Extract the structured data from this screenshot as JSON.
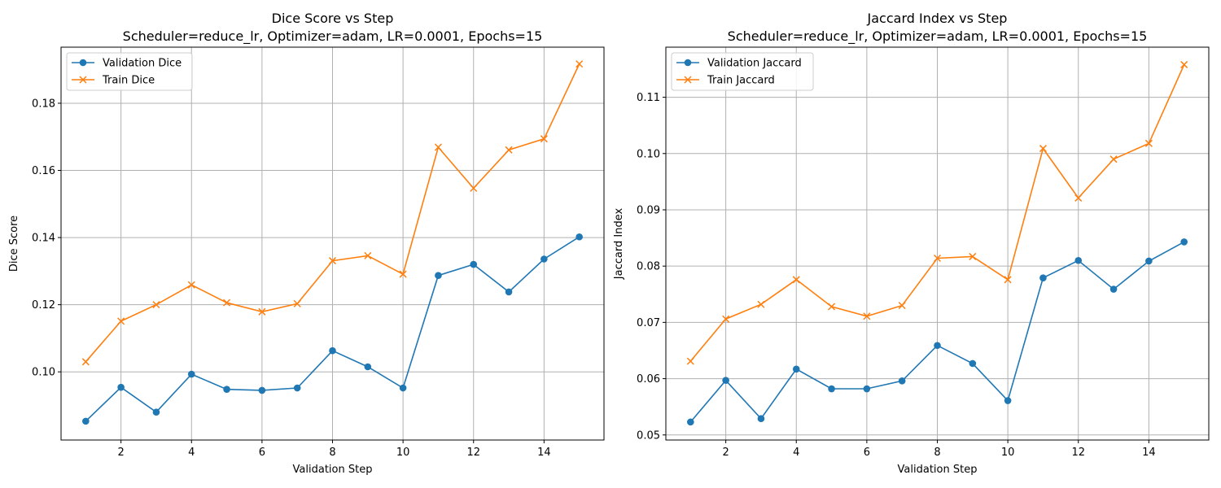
{
  "chart_data": [
    {
      "type": "line",
      "title": "Dice Score vs Step",
      "subtitle": "Scheduler=reduce_lr, Optimizer=adam, LR=0.0001, Epochs=15",
      "xlabel": "Validation Step",
      "ylabel": "Dice Score",
      "x": [
        1,
        2,
        3,
        4,
        5,
        6,
        7,
        8,
        9,
        10,
        11,
        12,
        13,
        14,
        15
      ],
      "xlim": [
        0.3,
        15.7
      ],
      "ylim": [
        0.0797,
        0.1967
      ],
      "xticks": [
        2,
        4,
        6,
        8,
        10,
        12,
        14
      ],
      "xtick_labels": [
        "2",
        "4",
        "6",
        "8",
        "10",
        "12",
        "14"
      ],
      "yticks": [
        0.1,
        0.12,
        0.14,
        0.16,
        0.18
      ],
      "ytick_labels": [
        "0.10",
        "0.12",
        "0.14",
        "0.16",
        "0.18"
      ],
      "grid": true,
      "legend_position": "top-left",
      "series": [
        {
          "name": "Validation Dice",
          "color": "#1f77b4",
          "marker": "circle",
          "values": [
            0.0853,
            0.0954,
            0.088,
            0.0993,
            0.0948,
            0.0945,
            0.0952,
            0.1063,
            0.1015,
            0.0952,
            0.1287,
            0.132,
            0.1238,
            0.1336,
            0.1402
          ]
        },
        {
          "name": "Train Dice",
          "color": "#ff7f0e",
          "marker": "x",
          "values": [
            0.103,
            0.1151,
            0.12,
            0.1259,
            0.1206,
            0.1179,
            0.1203,
            0.1331,
            0.1346,
            0.1291,
            0.1669,
            0.1547,
            0.1661,
            0.1694,
            0.1917
          ]
        }
      ]
    },
    {
      "type": "line",
      "title": "Jaccard Index vs Step",
      "subtitle": "Scheduler=reduce_lr, Optimizer=adam, LR=0.0001, Epochs=15",
      "xlabel": "Validation Step",
      "ylabel": "Jaccard Index",
      "x": [
        1,
        2,
        3,
        4,
        5,
        6,
        7,
        8,
        9,
        10,
        11,
        12,
        13,
        14,
        15
      ],
      "xlim": [
        0.3,
        15.7
      ],
      "ylim": [
        0.0491,
        0.1189
      ],
      "xticks": [
        2,
        4,
        6,
        8,
        10,
        12,
        14
      ],
      "xtick_labels": [
        "2",
        "4",
        "6",
        "8",
        "10",
        "12",
        "14"
      ],
      "yticks": [
        0.05,
        0.06,
        0.07,
        0.08,
        0.09,
        0.1,
        0.11
      ],
      "ytick_labels": [
        "0.05",
        "0.06",
        "0.07",
        "0.08",
        "0.09",
        "0.10",
        "0.11"
      ],
      "grid": true,
      "legend_position": "top-left",
      "series": [
        {
          "name": "Validation Jaccard",
          "color": "#1f77b4",
          "marker": "circle",
          "values": [
            0.0523,
            0.0597,
            0.0529,
            0.0617,
            0.0582,
            0.0582,
            0.0596,
            0.0659,
            0.0627,
            0.0561,
            0.0779,
            0.081,
            0.0759,
            0.0809,
            0.0843
          ]
        },
        {
          "name": "Train Jaccard",
          "color": "#ff7f0e",
          "marker": "x",
          "values": [
            0.0631,
            0.0706,
            0.0732,
            0.0776,
            0.0728,
            0.0711,
            0.073,
            0.0814,
            0.0817,
            0.0776,
            0.1009,
            0.0921,
            0.099,
            0.1018,
            0.1158
          ]
        }
      ]
    }
  ]
}
